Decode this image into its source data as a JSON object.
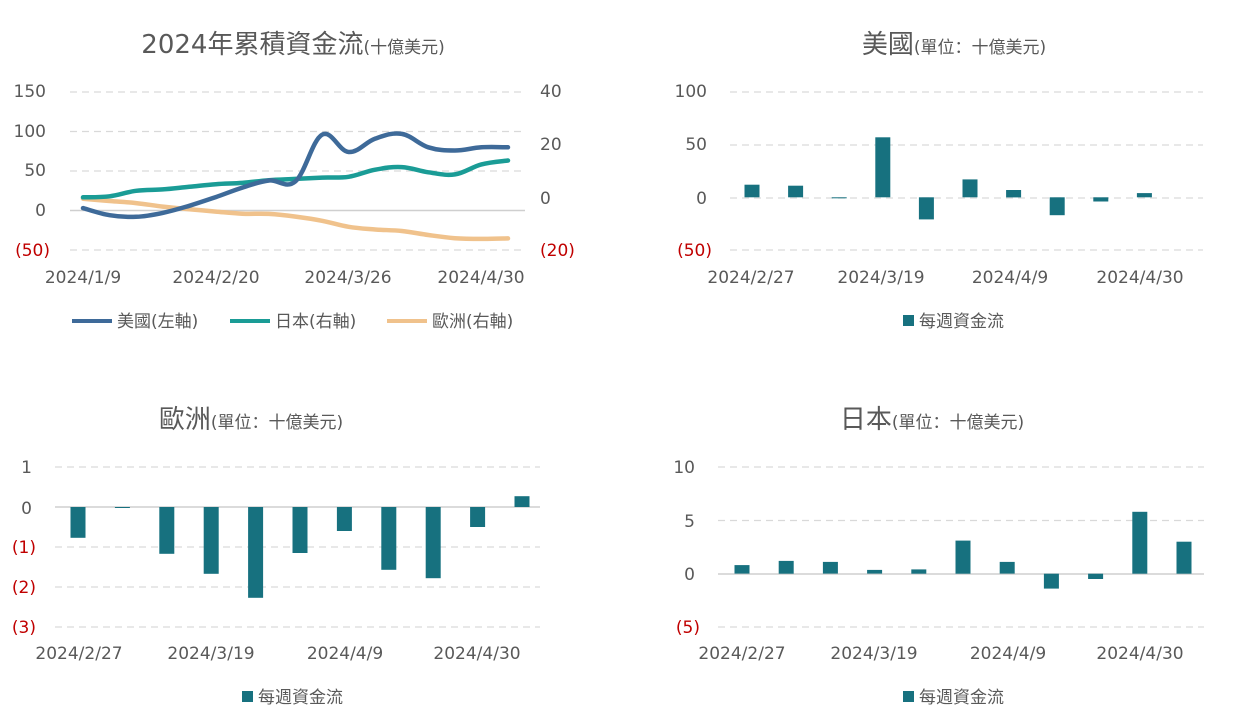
{
  "charts": [
    {
      "id": "cumulative",
      "title_main": "2024年累積資金流",
      "title_sub": "(十億美元)",
      "type": "line",
      "x_ticks": [
        "2024/1/9",
        "2024/2/20",
        "2024/3/26",
        "2024/4/30"
      ],
      "y_left_ticks": [
        "150",
        "100",
        "50",
        "0",
        "(50)"
      ],
      "y_right_ticks": [
        "40",
        "20",
        "0",
        "(20)"
      ],
      "ylim_left": [
        -50,
        150
      ],
      "ylim_right": [
        -20,
        40
      ],
      "legend": [
        "美國(左軸)",
        "日本(右軸)",
        "歐洲(右軸)"
      ]
    },
    {
      "id": "us",
      "title_main": "美國",
      "title_sub": "(單位：十億美元)",
      "type": "bar",
      "x_ticks": [
        "2024/2/27",
        "2024/3/19",
        "2024/4/9",
        "2024/4/30"
      ],
      "y_ticks": [
        "100",
        "50",
        "0",
        "(50)"
      ],
      "ylim": [
        -50,
        100
      ],
      "legend": "每週資金流"
    },
    {
      "id": "europe",
      "title_main": "歐洲",
      "title_sub": "(單位：十億美元)",
      "type": "bar",
      "x_ticks": [
        "2024/2/27",
        "2024/3/19",
        "2024/4/9",
        "2024/4/30"
      ],
      "y_ticks": [
        "1",
        "0",
        "(1)",
        "(2)",
        "(3)"
      ],
      "ylim": [
        -3,
        1
      ],
      "legend": "每週資金流"
    },
    {
      "id": "japan",
      "title_main": "日本",
      "title_sub": "(單位：十億美元)",
      "type": "bar",
      "x_ticks": [
        "2024/2/27",
        "2024/3/19",
        "2024/4/9",
        "2024/4/30"
      ],
      "y_ticks": [
        "10",
        "5",
        "0",
        "(5)"
      ],
      "ylim": [
        -5,
        10
      ],
      "legend": "每週資金流"
    }
  ],
  "chart_data": [
    {
      "type": "line",
      "title": "2024年累積資金流(十億美元)",
      "x": [
        "2024/1/9",
        "2024/1/16",
        "2024/1/23",
        "2024/1/30",
        "2024/2/6",
        "2024/2/13",
        "2024/2/20",
        "2024/2/27",
        "2024/3/5",
        "2024/3/12",
        "2024/3/19",
        "2024/3/26",
        "2024/4/2",
        "2024/4/9",
        "2024/4/16",
        "2024/4/23",
        "2024/4/30"
      ],
      "series": [
        {
          "name": "美國(左軸)",
          "axis": "left",
          "color": "#3e6a99",
          "values": [
            3,
            -6,
            -8,
            -3,
            6,
            17,
            29,
            38,
            37,
            96,
            74,
            91,
            97,
            80,
            76,
            80,
            80
          ]
        },
        {
          "name": "日本(右軸)",
          "axis": "right",
          "color": "#1a9c96",
          "values": [
            0,
            0.4,
            2.5,
            3,
            4,
            5,
            5.5,
            6.5,
            7,
            7.5,
            7.8,
            10.5,
            11.5,
            9.5,
            8.7,
            12.5,
            14
          ]
        },
        {
          "name": "歐洲(右軸)",
          "axis": "right",
          "color": "#f0c28c",
          "values": [
            -0.5,
            -1.4,
            -2.2,
            -3.5,
            -4.5,
            -5.4,
            -6.2,
            -6.3,
            -7.3,
            -8.9,
            -11.2,
            -12.2,
            -12.8,
            -14.3,
            -15.5,
            -15.8,
            -15.6
          ]
        }
      ],
      "ylim_left": [
        -50,
        150
      ],
      "ylim_right": [
        -20,
        40
      ],
      "legend_position": "bottom",
      "grid": true
    },
    {
      "type": "bar",
      "title": "美國(單位：十億美元)",
      "x": [
        "2024/2/27",
        "2024/3/5",
        "2024/3/12",
        "2024/3/19",
        "2024/3/26",
        "2024/4/2",
        "2024/4/9",
        "2024/4/16",
        "2024/4/23",
        "2024/4/30"
      ],
      "values": [
        12,
        11,
        0,
        57,
        -21,
        17,
        7,
        -17,
        -4,
        4
      ],
      "series_name": "每週資金流",
      "color": "#17717f",
      "ylim": [
        -50,
        100
      ],
      "legend_position": "bottom",
      "grid": true
    },
    {
      "type": "bar",
      "title": "歐洲(單位：十億美元)",
      "x": [
        "2024/2/27",
        "2024/3/5",
        "2024/3/12",
        "2024/3/19",
        "2024/3/26",
        "2024/4/2",
        "2024/4/9",
        "2024/4/16",
        "2024/4/23",
        "2024/4/30"
      ],
      "values": [
        -0.77,
        -0.02,
        -1.17,
        -1.67,
        -2.27,
        -1.15,
        -0.6,
        -1.57,
        -1.78,
        -0.5
      ],
      "extra_last": 0.27,
      "series_name": "每週資金流",
      "color": "#17717f",
      "ylim": [
        -3,
        1
      ],
      "legend_position": "bottom",
      "grid": true
    },
    {
      "type": "bar",
      "title": "日本(單位：十億美元)",
      "x": [
        "2024/2/27",
        "2024/3/5",
        "2024/3/12",
        "2024/3/19",
        "2024/3/26",
        "2024/4/2",
        "2024/4/9",
        "2024/4/16",
        "2024/4/23",
        "2024/4/30"
      ],
      "values": [
        0.8,
        1.2,
        1.1,
        0.35,
        0.4,
        3.1,
        1.1,
        -1.4,
        -0.5,
        5.8
      ],
      "extra_last": 3.0,
      "series_name": "每週資金流",
      "color": "#17717f",
      "ylim": [
        -5,
        10
      ],
      "legend_position": "bottom",
      "grid": true
    }
  ]
}
